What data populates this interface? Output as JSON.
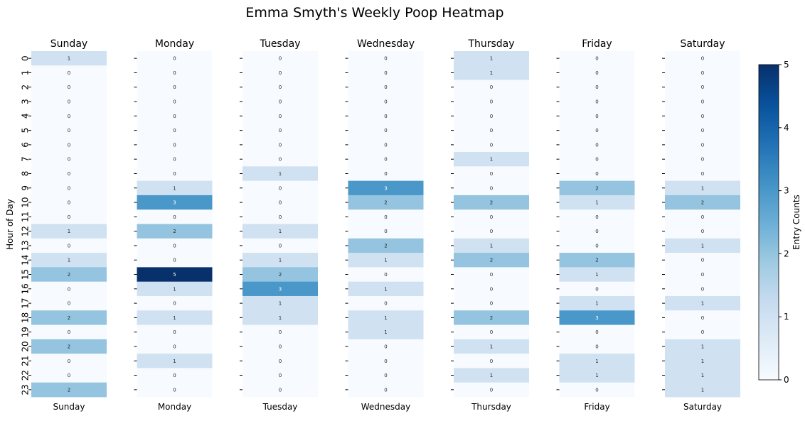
{
  "chart_data": {
    "type": "heatmap",
    "title": "Emma Smyth's Weekly Poop Heatmap",
    "ylabel": "Hour of Day",
    "hours": [
      0,
      1,
      2,
      3,
      4,
      5,
      6,
      7,
      8,
      9,
      10,
      11,
      12,
      13,
      14,
      15,
      16,
      17,
      18,
      19,
      20,
      21,
      22,
      23
    ],
    "days": [
      "Sunday",
      "Monday",
      "Tuesday",
      "Wednesday",
      "Thursday",
      "Friday",
      "Saturday"
    ],
    "values": {
      "Sunday": [
        1,
        0,
        0,
        0,
        0,
        0,
        0,
        0,
        0,
        0,
        0,
        0,
        1,
        0,
        1,
        2,
        0,
        0,
        2,
        0,
        2,
        0,
        0,
        2
      ],
      "Monday": [
        0,
        0,
        0,
        0,
        0,
        0,
        0,
        0,
        0,
        1,
        3,
        0,
        2,
        0,
        0,
        5,
        1,
        0,
        1,
        0,
        0,
        1,
        0,
        0
      ],
      "Tuesday": [
        0,
        0,
        0,
        0,
        0,
        0,
        0,
        0,
        1,
        0,
        0,
        0,
        1,
        0,
        1,
        2,
        3,
        1,
        1,
        0,
        0,
        0,
        0,
        0
      ],
      "Wednesday": [
        0,
        0,
        0,
        0,
        0,
        0,
        0,
        0,
        0,
        3,
        2,
        0,
        0,
        2,
        1,
        0,
        1,
        0,
        1,
        1,
        0,
        0,
        0,
        0
      ],
      "Thursday": [
        1,
        1,
        0,
        0,
        0,
        0,
        0,
        1,
        0,
        0,
        2,
        0,
        0,
        1,
        2,
        0,
        0,
        0,
        2,
        0,
        1,
        0,
        1,
        0
      ],
      "Friday": [
        0,
        0,
        0,
        0,
        0,
        0,
        0,
        0,
        0,
        2,
        1,
        0,
        0,
        0,
        2,
        1,
        0,
        1,
        3,
        0,
        0,
        1,
        1,
        0
      ],
      "Saturday": [
        0,
        0,
        0,
        0,
        0,
        0,
        0,
        0,
        0,
        1,
        2,
        0,
        0,
        1,
        0,
        0,
        0,
        1,
        0,
        0,
        1,
        1,
        1,
        1
      ]
    },
    "colorbar": {
      "label": "Entry Counts",
      "min": 0,
      "max": 5,
      "ticks": [
        0,
        1,
        2,
        3,
        4,
        5
      ]
    },
    "colormap_stops": [
      "#f7fbff",
      "#deebf7",
      "#c6dbef",
      "#9ecae1",
      "#6baed6",
      "#4292c6",
      "#2171b5",
      "#08519c",
      "#08306b"
    ]
  }
}
